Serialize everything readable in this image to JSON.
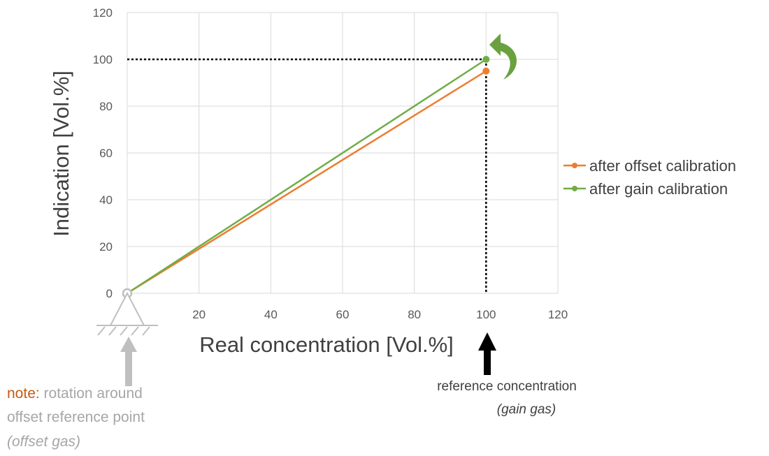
{
  "chart_data": {
    "type": "line",
    "title": "",
    "xlabel": "Real concentration [Vol.%]",
    "ylabel": "Indication [Vol.%]",
    "xlim": [
      0,
      120
    ],
    "ylim": [
      0,
      120
    ],
    "xticks": [
      0,
      20,
      40,
      60,
      80,
      100,
      120
    ],
    "yticks": [
      0,
      20,
      40,
      60,
      80,
      100,
      120
    ],
    "grid": true,
    "legend_position": "right",
    "series": [
      {
        "name": "after offset calibration",
        "color": "#ed7d31",
        "x": [
          0,
          100
        ],
        "y": [
          0,
          95
        ]
      },
      {
        "name": "after gain calibration",
        "color": "#70ad47",
        "x": [
          0,
          100
        ],
        "y": [
          0,
          100
        ]
      }
    ],
    "reference_lines": {
      "x": 100,
      "y": 100
    }
  },
  "annotations": {
    "note_label": "note:",
    "note_line1": " rotation around",
    "note_line2": "offset reference point",
    "note_line3": "(offset gas)",
    "ref_line1": "reference concentration",
    "ref_line2": "(gain gas)"
  },
  "icons": {
    "rotation_arrow": "curved-arrow-icon",
    "pivot_support": "pivot-support-icon",
    "offset_arrow": "up-arrow-icon",
    "reference_arrow": "up-arrow-icon"
  }
}
